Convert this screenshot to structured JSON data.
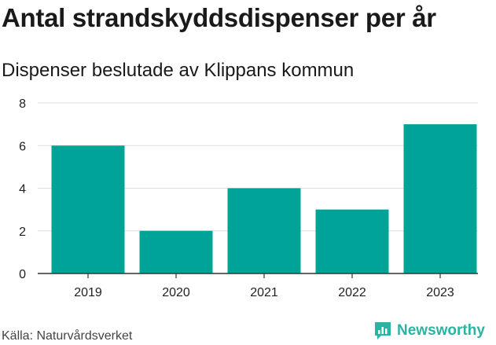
{
  "colors": {
    "bar": "#00a398",
    "grid": "#dddddd",
    "axis": "#333333",
    "text": "#222222",
    "brand": "#2bb3a3"
  },
  "chart_data": {
    "type": "bar",
    "title": "Antal strandskyddsdispenser per år",
    "subtitle": "Dispenser beslutade av Klippans kommun",
    "categories": [
      "2019",
      "2020",
      "2021",
      "2022",
      "2023"
    ],
    "values": [
      6,
      2,
      4,
      3,
      7
    ],
    "yticks": [
      0,
      2,
      4,
      6,
      8
    ],
    "ylim": [
      0,
      8
    ],
    "xlabel": "",
    "ylabel": "",
    "grid": true
  },
  "footer": {
    "source": "Källa: Naturvårdsverket",
    "brand": "Newsworthy",
    "brand_icon": "newsworthy-logo-icon"
  }
}
